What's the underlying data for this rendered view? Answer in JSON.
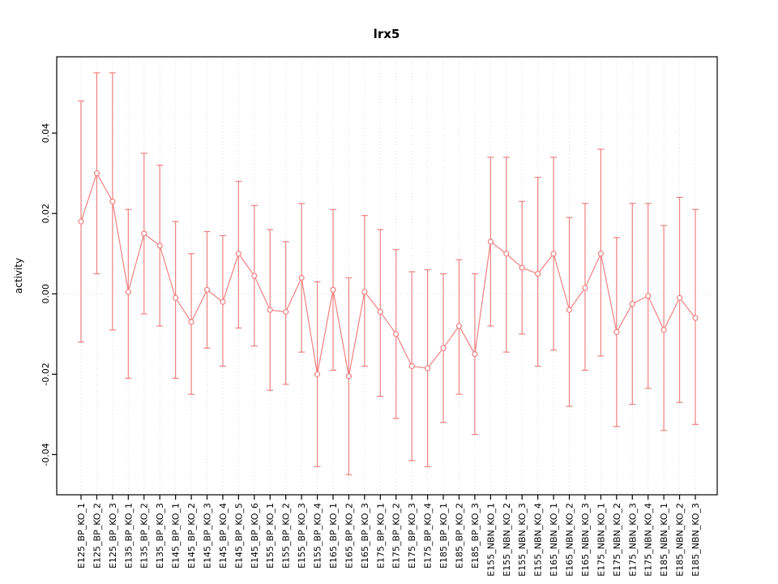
{
  "page": {
    "background": "#ffffff"
  },
  "chart_data": {
    "type": "line",
    "title": "lrx5",
    "xlabel": "",
    "ylabel": "activity",
    "ylim": [
      -0.05,
      0.059
    ],
    "yticks": [
      -0.04,
      -0.02,
      0,
      0.02,
      0.04
    ],
    "ytick_labels": [
      "-0.04",
      "-0.02",
      "0.00",
      "0.02",
      "0.04"
    ],
    "grid": {
      "vertical": "dotted-per-category",
      "zero_line": "dotted-horizontal"
    },
    "legend": "none",
    "series_color": "#f08080",
    "grid_color": "#dcdcdc",
    "axis_color": "#000000",
    "point_style": "open-circle",
    "error_bars": true,
    "categories": [
      "E125_BP_KO_1",
      "E125_BP_KO_2",
      "E125_BP_KO_3",
      "E135_BP_KO_1",
      "E135_BP_KO_2",
      "E135_BP_KO_3",
      "E145_BP_KO_1",
      "E145_BP_KO_2",
      "E145_BP_KO_3",
      "E145_BP_KO_4",
      "E145_BP_KO_5",
      "E145_BP_KO_6",
      "E155_BP_KO_1",
      "E155_BP_KO_2",
      "E155_BP_KO_3",
      "E155_BP_KO_4",
      "E165_BP_KO_1",
      "E165_BP_KO_2",
      "E165_BP_KO_3",
      "E175_BP_KO_1",
      "E175_BP_KO_2",
      "E175_BP_KO_3",
      "E175_BP_KO_4",
      "E185_BP_KO_1",
      "E185_BP_KO_2",
      "E185_BP_KO_3",
      "E155_NBN_KO_1",
      "E155_NBN_KO_2",
      "E155_NBN_KO_3",
      "E155_NBN_KO_4",
      "E165_NBN_KO_1",
      "E165_NBN_KO_2",
      "E165_NBN_KO_3",
      "E175_NBN_KO_1",
      "E175_NBN_KO_2",
      "E175_NBN_KO_3",
      "E175_NBN_KO_4",
      "E185_NBN_KO_1",
      "E185_NBN_KO_2",
      "E185_NBN_KO_3"
    ],
    "series": [
      {
        "name": "activity",
        "values": [
          0.018,
          0.03,
          0.023,
          0.0005,
          0.015,
          0.012,
          -0.001,
          -0.007,
          0.001,
          -0.002,
          0.01,
          0.0045,
          -0.004,
          -0.0045,
          0.004,
          -0.02,
          0.001,
          -0.0205,
          0.0005,
          -0.0045,
          -0.01,
          -0.018,
          -0.0185,
          -0.0135,
          -0.008,
          -0.015,
          0.013,
          0.01,
          0.0065,
          0.005,
          0.01,
          -0.004,
          0.0015,
          0.01,
          -0.0095,
          -0.0025,
          -0.0005,
          -0.009,
          -0.001,
          -0.006
        ],
        "ci_low": [
          -0.012,
          0.005,
          -0.009,
          -0.021,
          -0.005,
          -0.008,
          -0.021,
          -0.025,
          -0.0135,
          -0.018,
          -0.0085,
          -0.013,
          -0.024,
          -0.0225,
          -0.0145,
          -0.043,
          -0.019,
          -0.045,
          -0.018,
          -0.0255,
          -0.031,
          -0.0415,
          -0.043,
          -0.032,
          -0.025,
          -0.035,
          -0.008,
          -0.0145,
          -0.01,
          -0.018,
          -0.014,
          -0.028,
          -0.019,
          -0.0155,
          -0.033,
          -0.0275,
          -0.0235,
          -0.034,
          -0.027,
          -0.0325
        ],
        "ci_high": [
          0.048,
          0.055,
          0.055,
          0.021,
          0.035,
          0.032,
          0.018,
          0.01,
          0.0155,
          0.0145,
          0.028,
          0.022,
          0.016,
          0.013,
          0.0225,
          0.003,
          0.021,
          0.004,
          0.0195,
          0.016,
          0.011,
          0.0055,
          0.006,
          0.005,
          0.0085,
          0.005,
          0.034,
          0.034,
          0.023,
          0.029,
          0.034,
          0.019,
          0.0225,
          0.036,
          0.014,
          0.0225,
          0.0225,
          0.017,
          0.024,
          0.021
        ]
      }
    ]
  }
}
